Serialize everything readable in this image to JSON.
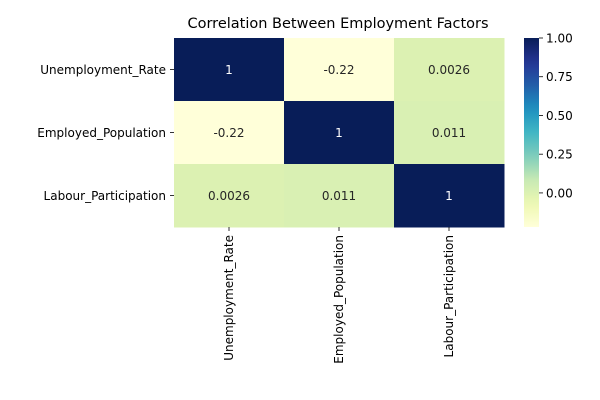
{
  "chart_data": {
    "type": "heatmap",
    "title": "Correlation Between Employment Factors",
    "row_labels": [
      "Unemployment_Rate",
      "Employed_Population",
      "Labour_Participation"
    ],
    "col_labels": [
      "Unemployment_Rate",
      "Employed_Population",
      "Labour_Participation"
    ],
    "values": [
      [
        1,
        -0.22,
        0.0026
      ],
      [
        -0.22,
        1,
        0.011
      ],
      [
        0.0026,
        0.011,
        1
      ]
    ],
    "cell_labels": [
      [
        "1",
        "-0.22",
        "0.0026"
      ],
      [
        "-0.22",
        "1",
        "0.011"
      ],
      [
        "0.0026",
        "0.011",
        "1"
      ]
    ],
    "colormap": "YlGnBu",
    "vmin": -0.22,
    "vmax": 1,
    "colorbar_ticks": [
      {
        "value": 1.0,
        "label": "1.00"
      },
      {
        "value": 0.75,
        "label": "0.75"
      },
      {
        "value": 0.5,
        "label": "0.50"
      },
      {
        "value": 0.25,
        "label": "0.25"
      },
      {
        "value": 0.0,
        "label": "0.00"
      }
    ],
    "xlabel": "",
    "ylabel": ""
  }
}
